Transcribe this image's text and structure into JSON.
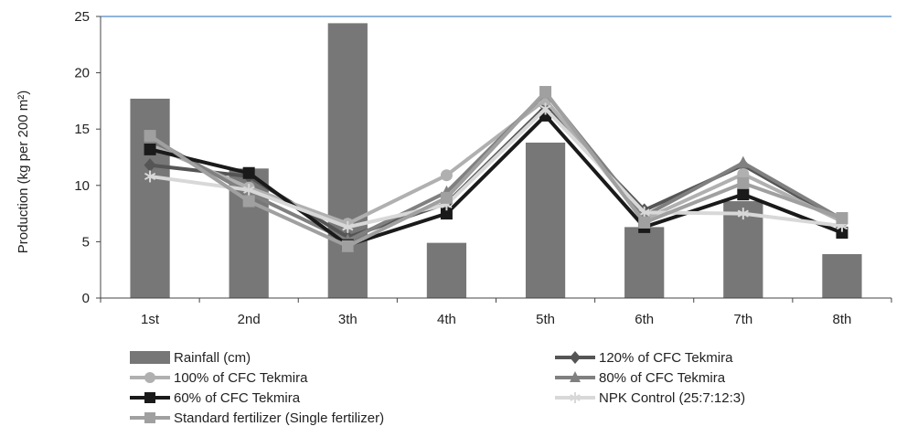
{
  "chart_data": {
    "type": "bar+line",
    "categories": [
      "1st",
      "2nd",
      "3th",
      "4th",
      "5th",
      "6th",
      "7th",
      "8th"
    ],
    "ylabel": "Production (kg per 200 m²)",
    "ylim": [
      0,
      25
    ],
    "yticks": [
      0,
      5,
      10,
      15,
      20,
      25
    ],
    "bars": {
      "name": "Rainfall (cm)",
      "color": "#777777",
      "values": [
        17.7,
        11.5,
        24.4,
        4.9,
        13.8,
        6.3,
        8.6,
        3.9
      ]
    },
    "series": [
      {
        "name": "120% of CFC Tekmira",
        "color": "#555555",
        "marker": "diamond",
        "values": [
          11.8,
          10.8,
          5.4,
          8.4,
          17.0,
          7.8,
          11.8,
          6.8
        ]
      },
      {
        "name": "100% of CFC Tekmira",
        "color": "#b0b0b0",
        "marker": "circle",
        "values": [
          13.6,
          9.8,
          6.6,
          10.9,
          17.6,
          7.0,
          11.0,
          6.8
        ]
      },
      {
        "name": "80% of CFC Tekmira",
        "color": "#808080",
        "marker": "triangle",
        "values": [
          14.2,
          9.3,
          5.1,
          9.4,
          18.2,
          7.3,
          12.0,
          7.0
        ]
      },
      {
        "name": "60% of CFC Tekmira",
        "color": "#1a1a1a",
        "marker": "square",
        "values": [
          13.2,
          11.1,
          4.7,
          7.5,
          16.2,
          6.3,
          9.2,
          5.8
        ]
      },
      {
        "name": "NPK Control (25:7:12:3)",
        "color": "#d8d8d8",
        "marker": "star",
        "values": [
          10.8,
          9.6,
          6.3,
          8.3,
          16.8,
          7.6,
          7.5,
          6.4
        ]
      },
      {
        "name": "Standard fertilizer (Single fertilizer)",
        "color": "#a0a0a0",
        "marker": "square",
        "values": [
          14.4,
          8.6,
          4.6,
          8.9,
          18.3,
          6.7,
          10.2,
          7.1
        ]
      }
    ],
    "legend_position": "bottom",
    "top_border_color": "#4f86c6"
  }
}
